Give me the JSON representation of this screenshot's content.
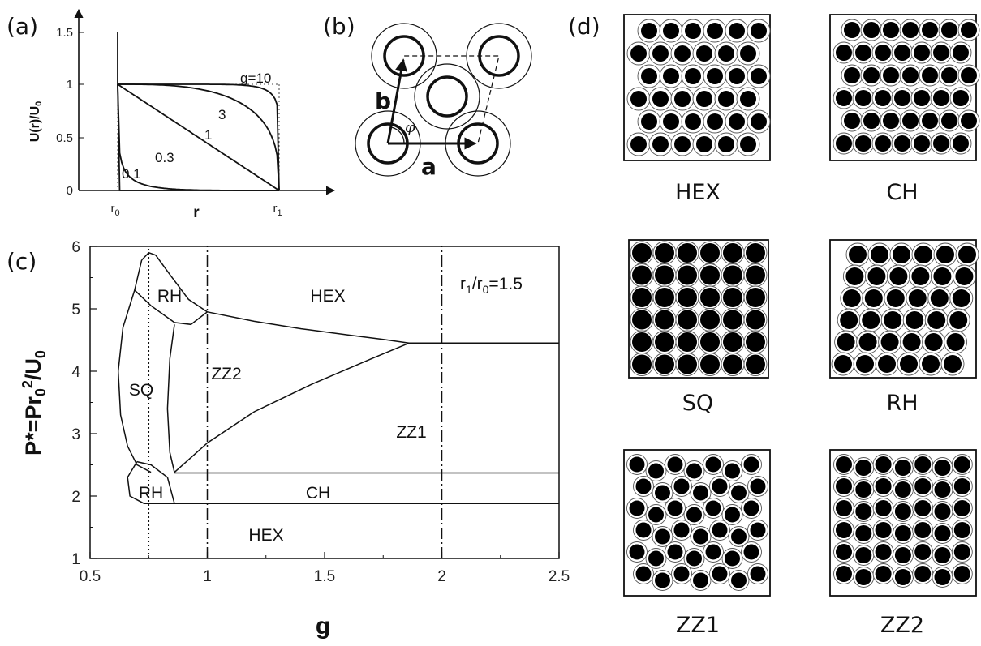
{
  "panels": {
    "a": "(a)",
    "b": "(b)",
    "c": "(c)",
    "d": "(d)"
  },
  "chart_data": [
    {
      "panel": "a",
      "type": "line",
      "ylabel": "U(r)/U0",
      "xlabel": "r",
      "xticks": [
        "r0",
        "r1"
      ],
      "yticks": [
        "0",
        "0.5",
        "1",
        "1.5"
      ],
      "ylim": [
        0,
        1.5
      ],
      "series": [
        {
          "name": "0.1",
          "g": 0.1
        },
        {
          "name": "0.3",
          "g": 0.3
        },
        {
          "name": "1",
          "g": 1
        },
        {
          "name": "3",
          "g": 3
        },
        {
          "name": "g=10",
          "g": 10
        }
      ]
    },
    {
      "panel": "c",
      "type": "line",
      "xlabel": "g",
      "ylabel": "P*=Pr0^2/U0",
      "xlim": [
        0.5,
        2.5
      ],
      "ylim": [
        1,
        6
      ],
      "xticks": [
        "0.5",
        "1",
        "1.5",
        "2",
        "2.5"
      ],
      "yticks": [
        "1",
        "2",
        "3",
        "4",
        "5",
        "6"
      ],
      "annotation": "r1/r0=1.5",
      "regions": [
        "HEX",
        "RH",
        "SQ",
        "ZZ2",
        "ZZ1",
        "RH",
        "CH",
        "HEX"
      ],
      "boundaries": [
        {
          "name": "RH-top",
          "x": [
            0.72,
            0.75,
            0.78,
            0.84,
            0.92,
            1.0
          ],
          "y": [
            5.78,
            5.9,
            5.86,
            5.55,
            5.15,
            4.95
          ]
        },
        {
          "name": "RH-bottom",
          "x": [
            0.69,
            0.76,
            0.86,
            0.93,
            1.0
          ],
          "y": [
            5.3,
            5.05,
            4.78,
            4.75,
            4.95
          ]
        },
        {
          "name": "SQ-left",
          "x": [
            0.72,
            0.69,
            0.64,
            0.62,
            0.63,
            0.66,
            0.7,
            0.76
          ],
          "y": [
            5.78,
            5.3,
            4.7,
            4.0,
            3.3,
            2.8,
            2.5,
            2.38
          ]
        },
        {
          "name": "SQ-right",
          "x": [
            0.86,
            0.84,
            0.83,
            0.84,
            0.86
          ],
          "y": [
            4.75,
            4.2,
            3.4,
            2.7,
            2.38
          ]
        },
        {
          "name": "HEX-ZZ1-upper",
          "x": [
            1.0,
            1.2,
            1.4,
            1.6,
            1.75,
            1.86
          ],
          "y": [
            4.95,
            4.8,
            4.68,
            4.58,
            4.51,
            4.45
          ]
        },
        {
          "name": "ZZ2-ZZ1",
          "x": [
            0.86,
            1.0,
            1.2,
            1.45,
            1.7,
            1.86
          ],
          "y": [
            2.38,
            2.85,
            3.35,
            3.8,
            4.2,
            4.45
          ]
        },
        {
          "name": "HEX-ZZ1-flat",
          "x": [
            1.86,
            2.5
          ],
          "y": [
            4.45,
            4.45
          ]
        },
        {
          "name": "ZZ1-CH",
          "x": [
            0.86,
            2.5
          ],
          "y": [
            2.37,
            2.37
          ]
        },
        {
          "name": "CH-HEX",
          "x": [
            0.84,
            2.5
          ],
          "y": [
            1.88,
            1.88
          ]
        },
        {
          "name": "RH-pocket",
          "x": [
            0.7,
            0.66,
            0.67,
            0.73,
            0.8,
            0.86,
            0.83,
            0.76,
            0.7
          ],
          "y": [
            2.55,
            2.3,
            2.0,
            1.88,
            1.88,
            1.88,
            2.3,
            2.5,
            2.55
          ]
        },
        {
          "name": "dotted",
          "x": [
            0.75,
            0.75
          ],
          "y": [
            1,
            6
          ]
        },
        {
          "name": "dash-dot-1",
          "x": [
            1,
            1
          ],
          "y": [
            1,
            6
          ]
        },
        {
          "name": "dash-dot-2",
          "x": [
            2,
            2
          ],
          "y": [
            1,
            6
          ]
        }
      ]
    }
  ],
  "region_labels": {
    "hex_top": "HEX",
    "rh_top": "RH",
    "sq": "SQ",
    "zz2": "ZZ2",
    "zz1": "ZZ1",
    "rh_bottom": "RH",
    "ch": "CH",
    "hex_bottom": "HEX"
  },
  "ratio_label": "r1/r0=1.5",
  "panel_b": {
    "a": "a",
    "b": "b",
    "angle": "φ"
  },
  "lattices": [
    "HEX",
    "CH",
    "SQ",
    "RH",
    "ZZ1",
    "ZZ2"
  ]
}
